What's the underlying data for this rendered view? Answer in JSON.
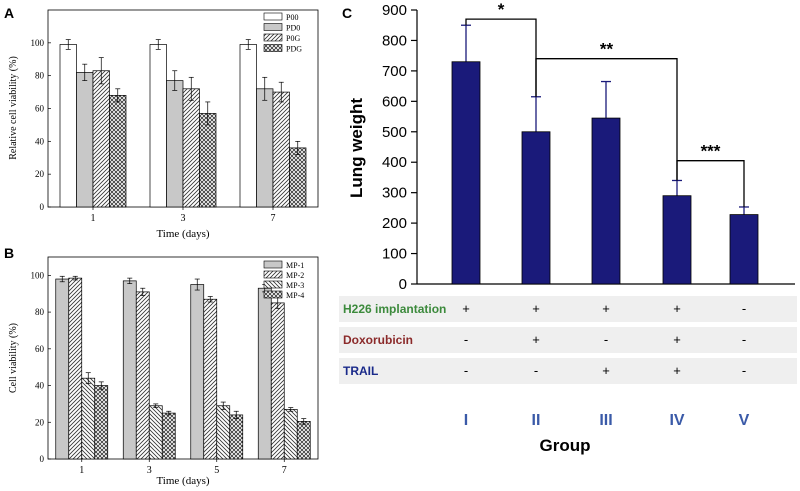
{
  "panels": {
    "a_label": "A",
    "b_label": "B",
    "c_label": "C"
  },
  "colors": {
    "navy": "#1a1a7a",
    "row_bg": "#efefef",
    "green_text": "#3c8a3c",
    "red_text": "#8b2a2a",
    "blue_text": "#1a2a8a",
    "group_blue": "#3a5aa8"
  },
  "chart_data": [
    {
      "type": "bar",
      "panel": "A",
      "categories": [
        "1",
        "3",
        "7"
      ],
      "series": [
        {
          "name": "P00",
          "pattern": "white",
          "values": [
            99,
            99,
            99
          ],
          "errors": [
            3,
            3,
            3
          ]
        },
        {
          "name": "PD0",
          "pattern": "gray",
          "values": [
            82,
            77,
            72
          ],
          "errors": [
            5,
            6,
            7
          ]
        },
        {
          "name": "P0G",
          "pattern": "diagonal",
          "values": [
            83,
            72,
            70
          ],
          "errors": [
            8,
            7,
            6
          ]
        },
        {
          "name": "PDG",
          "pattern": "crosshatch",
          "values": [
            68,
            57,
            36
          ],
          "errors": [
            4,
            7,
            4
          ]
        }
      ],
      "xlabel": "Time (days)",
      "ylabel": "Relative cell viability (%)",
      "ylim": [
        0,
        120
      ],
      "yticks": [
        0,
        20,
        40,
        60,
        80,
        100
      ],
      "legend": "top-right"
    },
    {
      "type": "bar",
      "panel": "B",
      "categories": [
        "1",
        "3",
        "5",
        "7"
      ],
      "series": [
        {
          "name": "MP-1",
          "pattern": "gray",
          "values": [
            98,
            97,
            95,
            93
          ],
          "errors": [
            1.5,
            1.5,
            3,
            2
          ]
        },
        {
          "name": "MP-2",
          "pattern": "diagonal",
          "values": [
            98.5,
            91,
            87,
            85
          ],
          "errors": [
            1,
            2,
            1.5,
            3
          ]
        },
        {
          "name": "MP-3",
          "pattern": "backdiagonal",
          "values": [
            44,
            29,
            29,
            27
          ],
          "errors": [
            3,
            1,
            2,
            1
          ]
        },
        {
          "name": "MP-4",
          "pattern": "crosshatch",
          "values": [
            40,
            25,
            24,
            20.5
          ],
          "errors": [
            2,
            1,
            2,
            1.5
          ]
        }
      ],
      "xlabel": "Time (days)",
      "ylabel": "Cell viability (%)",
      "ylim": [
        0,
        110
      ],
      "yticks": [
        0,
        20,
        40,
        60,
        80,
        100
      ],
      "legend": "top-right"
    },
    {
      "type": "bar",
      "panel": "C",
      "categories": [
        "I",
        "II",
        "III",
        "IV",
        "V"
      ],
      "values": [
        730,
        500,
        545,
        290,
        228
      ],
      "errors": [
        120,
        115,
        120,
        50,
        25
      ],
      "xlabel": "Group",
      "ylabel": "Lung weight",
      "ylim": [
        0,
        900
      ],
      "yticks": [
        0,
        100,
        200,
        300,
        400,
        500,
        600,
        700,
        800,
        900
      ],
      "significance": [
        {
          "from": "I",
          "to": "II",
          "label": "*"
        },
        {
          "from": "II",
          "to": "IV",
          "label": "**"
        },
        {
          "from": "IV",
          "to": "V",
          "label": "***"
        }
      ],
      "treatment_table": [
        {
          "label": "H226 implantation",
          "color": "green",
          "marks": [
            "+",
            "+",
            "+",
            "+",
            "-"
          ]
        },
        {
          "label": "Doxorubicin",
          "color": "red",
          "marks": [
            "-",
            "+",
            "-",
            "+",
            "-"
          ]
        },
        {
          "label": "TRAIL",
          "color": "blue",
          "marks": [
            "-",
            "-",
            "+",
            "+",
            "-"
          ]
        }
      ]
    }
  ]
}
